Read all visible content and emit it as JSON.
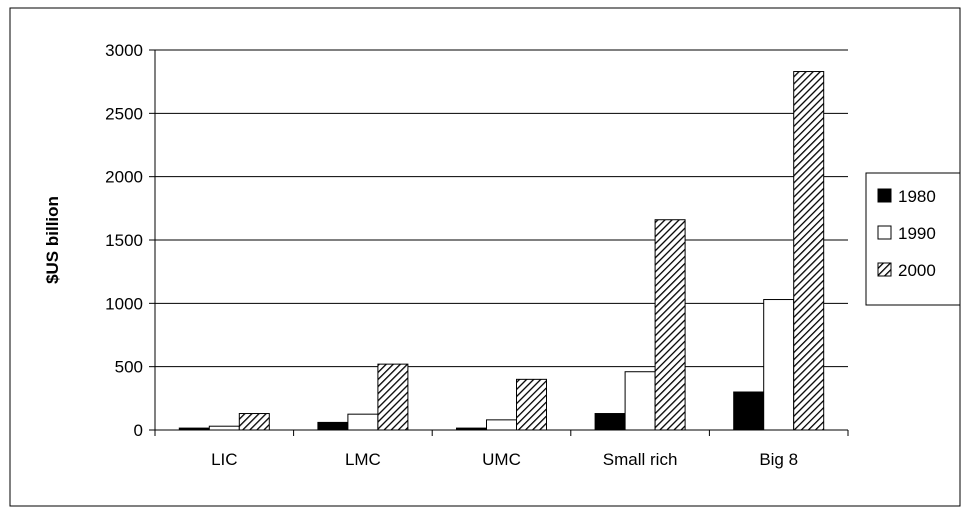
{
  "chart_data": {
    "type": "bar",
    "title": "",
    "xlabel": "",
    "ylabel": "$US billion",
    "ylim": [
      0,
      3000
    ],
    "yticks": [
      0,
      500,
      1000,
      1500,
      2000,
      2500,
      3000
    ],
    "grid": true,
    "legend_position": "right",
    "categories": [
      "LIC",
      "LMC",
      "UMC",
      "Small rich",
      "Big 8"
    ],
    "series": [
      {
        "name": "1980",
        "values": [
          15,
          60,
          15,
          130,
          300
        ],
        "color": "#000000",
        "fill": "solid"
      },
      {
        "name": "1990",
        "values": [
          30,
          125,
          80,
          460,
          1030
        ],
        "color": "#ffffff",
        "fill": "solid"
      },
      {
        "name": "2000",
        "values": [
          130,
          520,
          400,
          1660,
          2830
        ],
        "color": "#000000",
        "fill": "diagonal-hatch"
      }
    ]
  }
}
